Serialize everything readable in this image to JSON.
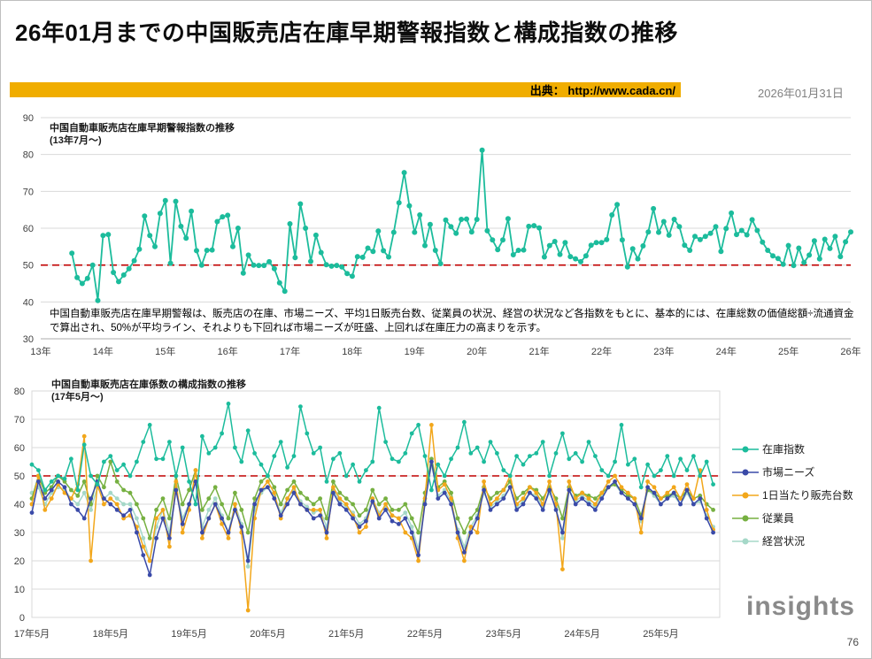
{
  "page": {
    "title": "26年01月までの中国販売店在庫早期警報指数と構成指数の推移",
    "source_label": "出典： http://www.cada.cn/",
    "date": "2026年01月31日",
    "description": "中国自動車販売店在庫早期警報は、販売店の在庫、市場ニーズ、平均1日販売台数、従業員の状況、経営の状況など各指数をもとに、基本的には、在庫総数の価値総額÷流通資金で算出され、50%が平均ライン、それよりも下回れば市場ニーズが旺盛、上回れば在庫圧力の高まりを示す。",
    "logo": "insights",
    "page_number": "76"
  },
  "colors": {
    "accent_bar": "#F0AD00",
    "reference_line": "#C00000",
    "grid": "#D9D9D9"
  },
  "chart_data": [
    {
      "type": "line",
      "title": "中国自動車販売店在庫早期警報指数の推移",
      "subtitle": "(13年7月～)",
      "x_start": "2013-07",
      "x_tick_labels": [
        "13年",
        "14年",
        "15年",
        "16年",
        "17年",
        "18年",
        "19年",
        "20年",
        "21年",
        "22年",
        "23年",
        "24年",
        "25年",
        "26年"
      ],
      "ylim": [
        30,
        90
      ],
      "y_ticks": [
        30,
        40,
        50,
        60,
        70,
        80,
        90
      ],
      "reference_line": 50,
      "grid": true,
      "legend_position": "none",
      "series": [
        {
          "name": "在庫早期警報指数",
          "color": "#1CBC9C",
          "values": [
            53.2,
            46.6,
            45,
            46.4,
            50,
            40.4,
            58,
            58.3,
            48,
            45.5,
            47.3,
            49,
            51.2,
            54.3,
            63.3,
            58,
            55,
            64,
            67.5,
            50.5,
            67.3,
            60.5,
            57.3,
            64.6,
            53.9,
            50,
            54,
            54.1,
            61.8,
            63.1,
            63.5,
            55,
            60,
            47.8,
            52.7,
            50,
            49.9,
            49.9,
            50.9,
            49,
            45.2,
            42.9,
            61.2,
            52,
            66.6,
            60,
            51,
            58.1,
            53.4,
            50.1,
            49.7,
            49.9,
            49.5,
            47.7,
            47,
            52.3,
            52.1,
            54.6,
            53.7,
            59.2,
            53.9,
            52.2,
            58.9,
            66.9,
            75.1,
            66.1,
            58.9,
            63.6,
            55.3,
            61,
            54,
            50.4,
            62.2,
            60.4,
            58.6,
            62.4,
            62.5,
            59,
            62.4,
            81.2,
            59.3,
            56.8,
            54.2,
            56.8,
            62.6,
            52.8,
            54,
            54.1,
            60.5,
            60.7,
            60.1,
            52.2,
            55.3,
            56.4,
            52.9,
            56.1,
            52.3,
            51.7,
            50.9,
            52.5,
            55.4,
            56.1,
            56.1,
            56.9,
            63.6,
            66.4,
            56.8,
            49.5,
            54.4,
            51.7,
            55.2,
            59,
            65.3,
            58.9,
            61.8,
            58.1,
            62.4,
            60.4,
            55.4,
            54,
            57.8,
            56.9,
            57.8,
            58.6,
            60.4,
            53.7,
            59.9,
            64.1,
            58.3,
            59.4,
            58.2,
            62.3,
            59.4,
            56.2,
            54,
            52.5,
            51.8,
            50.2,
            55.3,
            49.9,
            54.6,
            50.7,
            52.7,
            56.6,
            51.7,
            57,
            54.5,
            57.8,
            52.3,
            56.3,
            59
          ]
        }
      ]
    },
    {
      "type": "line",
      "title": "中国自動車販売店在庫係数の構成指数の推移",
      "subtitle": "(17年5月～)",
      "x_start": "2017-05",
      "x_tick_labels": [
        "17年5月",
        "18年5月",
        "19年5月",
        "20年5月",
        "21年5月",
        "22年5月",
        "23年5月",
        "24年5月",
        "25年5月"
      ],
      "ylim": [
        0,
        80
      ],
      "y_ticks": [
        0,
        10,
        20,
        30,
        40,
        50,
        60,
        70,
        80
      ],
      "reference_line": 50,
      "grid": true,
      "legend_position": "right",
      "series": [
        {
          "name": "在庫指数",
          "color": "#1CBC9C",
          "values": [
            54,
            52,
            45,
            48,
            50,
            49,
            56,
            45,
            61,
            50,
            47,
            55,
            57,
            52,
            54,
            50,
            55,
            62,
            68,
            56,
            56,
            62,
            50,
            60,
            48,
            40,
            64,
            58,
            60,
            65,
            75.5,
            60,
            55,
            66,
            58,
            54,
            50,
            57,
            62,
            53,
            57,
            74.5,
            65,
            58,
            60,
            48,
            56,
            58,
            50,
            54,
            48,
            52,
            55,
            74,
            62,
            56,
            55,
            58,
            65,
            68,
            57,
            45,
            54,
            50,
            56,
            60,
            69,
            58,
            60,
            55,
            62,
            58,
            52,
            50,
            57,
            54,
            57,
            58,
            62,
            50,
            58,
            65,
            56,
            58,
            55,
            62,
            57,
            52,
            50,
            55,
            68,
            54,
            56,
            46,
            54,
            50,
            52,
            57,
            50,
            56,
            52,
            57,
            50,
            55,
            47
          ]
        },
        {
          "name": "市場ニーズ",
          "color": "#3A4AA8",
          "values": [
            37,
            48,
            42,
            45,
            48,
            46,
            40,
            38,
            35,
            42,
            48,
            42,
            40,
            38,
            36,
            38,
            30,
            22,
            15,
            28,
            35,
            28,
            45,
            33,
            40,
            48,
            30,
            35,
            40,
            35,
            30,
            38,
            32,
            20,
            40,
            45,
            46,
            42,
            36,
            40,
            44,
            40,
            38,
            35,
            36,
            30,
            44,
            40,
            38,
            35,
            32,
            34,
            41,
            35,
            38,
            34,
            33,
            35,
            30,
            22,
            40,
            55,
            42,
            44,
            40,
            30,
            23,
            30,
            35,
            45,
            38,
            40,
            42,
            46,
            38,
            40,
            44,
            42,
            38,
            45,
            38,
            30,
            45,
            40,
            42,
            40,
            38,
            42,
            46,
            48,
            44,
            42,
            40,
            35,
            46,
            44,
            40,
            42,
            44,
            40,
            45,
            40,
            42,
            35,
            30
          ]
        },
        {
          "name": "1日当たり販売台数",
          "color": "#F2A71B",
          "values": [
            40,
            50,
            38,
            42,
            47,
            44,
            42,
            47,
            64,
            20,
            47,
            40,
            42,
            40,
            35,
            36,
            32,
            25,
            20,
            35,
            38,
            25,
            48,
            30,
            38,
            52,
            28,
            35,
            40,
            33,
            28,
            40,
            30,
            2.5,
            35,
            45,
            48,
            44,
            35,
            42,
            46,
            40,
            38,
            38,
            38,
            28,
            46,
            42,
            40,
            36,
            30,
            32,
            42,
            36,
            40,
            36,
            35,
            30,
            28,
            20,
            42,
            68,
            45,
            47,
            42,
            28,
            20,
            32,
            30,
            48,
            40,
            42,
            45,
            50,
            40,
            42,
            46,
            44,
            40,
            48,
            40,
            17,
            48,
            42,
            44,
            42,
            40,
            44,
            48,
            50,
            46,
            44,
            42,
            30,
            48,
            46,
            42,
            44,
            46,
            42,
            47,
            42,
            52,
            38,
            31
          ]
        },
        {
          "name": "従業員",
          "color": "#76B041",
          "values": [
            42,
            50,
            44,
            46,
            50,
            48,
            45,
            43,
            48,
            40,
            50,
            46,
            55,
            48,
            45,
            44,
            40,
            35,
            28,
            38,
            42,
            35,
            50,
            40,
            45,
            52,
            38,
            42,
            46,
            40,
            35,
            44,
            38,
            30,
            42,
            48,
            50,
            46,
            40,
            45,
            48,
            44,
            42,
            40,
            42,
            35,
            48,
            44,
            42,
            40,
            36,
            38,
            45,
            40,
            42,
            38,
            38,
            40,
            35,
            30,
            44,
            56,
            46,
            48,
            44,
            35,
            30,
            35,
            38,
            46,
            42,
            44,
            45,
            48,
            42,
            44,
            46,
            45,
            42,
            46,
            42,
            35,
            46,
            43,
            44,
            43,
            42,
            44,
            46,
            47,
            45,
            43,
            42,
            36,
            45,
            44,
            42,
            43,
            44,
            42,
            45,
            42,
            43,
            40,
            38
          ]
        },
        {
          "name": "経営状況",
          "color": "#A5D8C8",
          "values": [
            44,
            46,
            40,
            44,
            46,
            45,
            42,
            40,
            44,
            38,
            46,
            42,
            44,
            42,
            40,
            40,
            35,
            28,
            20,
            32,
            38,
            30,
            46,
            35,
            40,
            48,
            32,
            38,
            42,
            36,
            30,
            40,
            33,
            18,
            38,
            44,
            46,
            43,
            37,
            42,
            45,
            41,
            39,
            37,
            38,
            32,
            45,
            41,
            39,
            37,
            33,
            35,
            42,
            37,
            39,
            36,
            35,
            37,
            32,
            24,
            41,
            54,
            43,
            45,
            41,
            31,
            25,
            32,
            36,
            44,
            39,
            41,
            43,
            46,
            39,
            41,
            44,
            43,
            39,
            44,
            39,
            28,
            45,
            41,
            43,
            41,
            39,
            43,
            46,
            47,
            44,
            42,
            40,
            34,
            45,
            43,
            40,
            42,
            43,
            40,
            44,
            40,
            41,
            36,
            32
          ]
        }
      ]
    }
  ]
}
